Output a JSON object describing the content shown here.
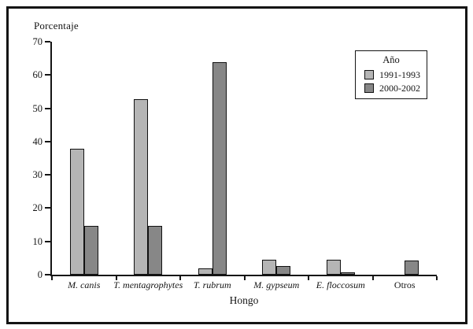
{
  "chart_data": {
    "type": "bar",
    "title": "",
    "ylabel": "Porcentaje",
    "xlabel": "Hongo",
    "categories": [
      "M. canis",
      "T. mentagrophytes",
      "T. rubrum",
      "M. gypseum",
      "E. floccosum",
      "Otros"
    ],
    "category_styles": [
      "italic",
      "italic",
      "italic",
      "italic",
      "italic",
      "normal"
    ],
    "series": [
      {
        "name": "1991-1993",
        "color": "#b5b5b5",
        "values": [
          37.8,
          52.8,
          1.8,
          4.4,
          4.6,
          0
        ]
      },
      {
        "name": "2000-2002",
        "color": "#878787",
        "values": [
          14.7,
          14.7,
          63.8,
          2.6,
          0.8,
          4.2
        ]
      }
    ],
    "ylim": [
      0,
      70
    ],
    "ytick_step": 10,
    "grid": false,
    "legend": {
      "title": "Año",
      "position": "top-right"
    },
    "colors": {
      "axis": "#141414",
      "background": "#ffffff",
      "bar_border": "#111111"
    }
  }
}
